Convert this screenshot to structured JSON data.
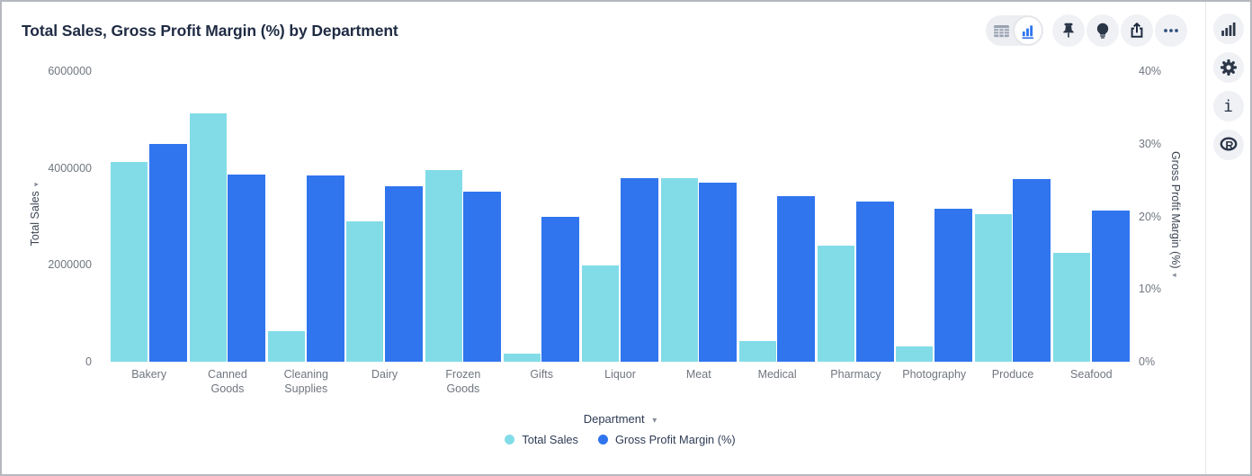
{
  "header": {
    "title": "Total Sales, Gross Profit Margin (%) by Department"
  },
  "toolbar": {
    "view_toggle": {
      "options": [
        "table-view",
        "chart-view"
      ],
      "selected": "chart-view"
    },
    "actions": [
      "pin",
      "lightbulb",
      "share",
      "more-options"
    ]
  },
  "sidebar": {
    "buttons": [
      "chart-options",
      "settings",
      "info",
      "r-logo"
    ]
  },
  "icons": {
    "dropdown_arrow": "▾",
    "ellipsis": "•••"
  },
  "chart_data": {
    "type": "bar",
    "title": "Total Sales, Gross Profit Margin (%) by Department",
    "categories": [
      "Bakery",
      "Canned Goods",
      "Cleaning Supplies",
      "Dairy",
      "Frozen Goods",
      "Gifts",
      "Liquor",
      "Meat",
      "Medical",
      "Pharmacy",
      "Photography",
      "Produce",
      "Seafood"
    ],
    "series": [
      {
        "name": "Total Sales",
        "axis": "left",
        "color": "#82dce8",
        "values": [
          4130000,
          5130000,
          630000,
          2900000,
          3960000,
          170000,
          1980000,
          3790000,
          430000,
          2400000,
          320000,
          3050000,
          2240000
        ]
      },
      {
        "name": "Gross Profit Margin (%)",
        "axis": "right",
        "color": "#3075ee",
        "values": [
          30.0,
          25.7,
          25.6,
          24.1,
          23.4,
          20.0,
          25.3,
          24.7,
          22.8,
          22.1,
          21.0,
          25.1,
          20.8
        ]
      }
    ],
    "left_axis": {
      "label": "Total Sales",
      "min": 0,
      "max": 6000000,
      "tick_values": [
        0,
        2000000,
        4000000,
        6000000
      ],
      "tick_labels": [
        "0",
        "2000000",
        "4000000",
        "6000000"
      ]
    },
    "right_axis": {
      "label": "Gross Profit Margin (%)",
      "min": 0,
      "max": 40,
      "tick_values": [
        0,
        10,
        20,
        30,
        40
      ],
      "tick_labels": [
        "0%",
        "10%",
        "20%",
        "30%",
        "40%"
      ]
    },
    "x_axis": {
      "label": "Department"
    },
    "legend": [
      {
        "label": "Total Sales",
        "color": "#82dce8"
      },
      {
        "label": "Gross Profit Margin (%)",
        "color": "#3075ee"
      }
    ],
    "grid": false,
    "legend_position": "bottom"
  }
}
